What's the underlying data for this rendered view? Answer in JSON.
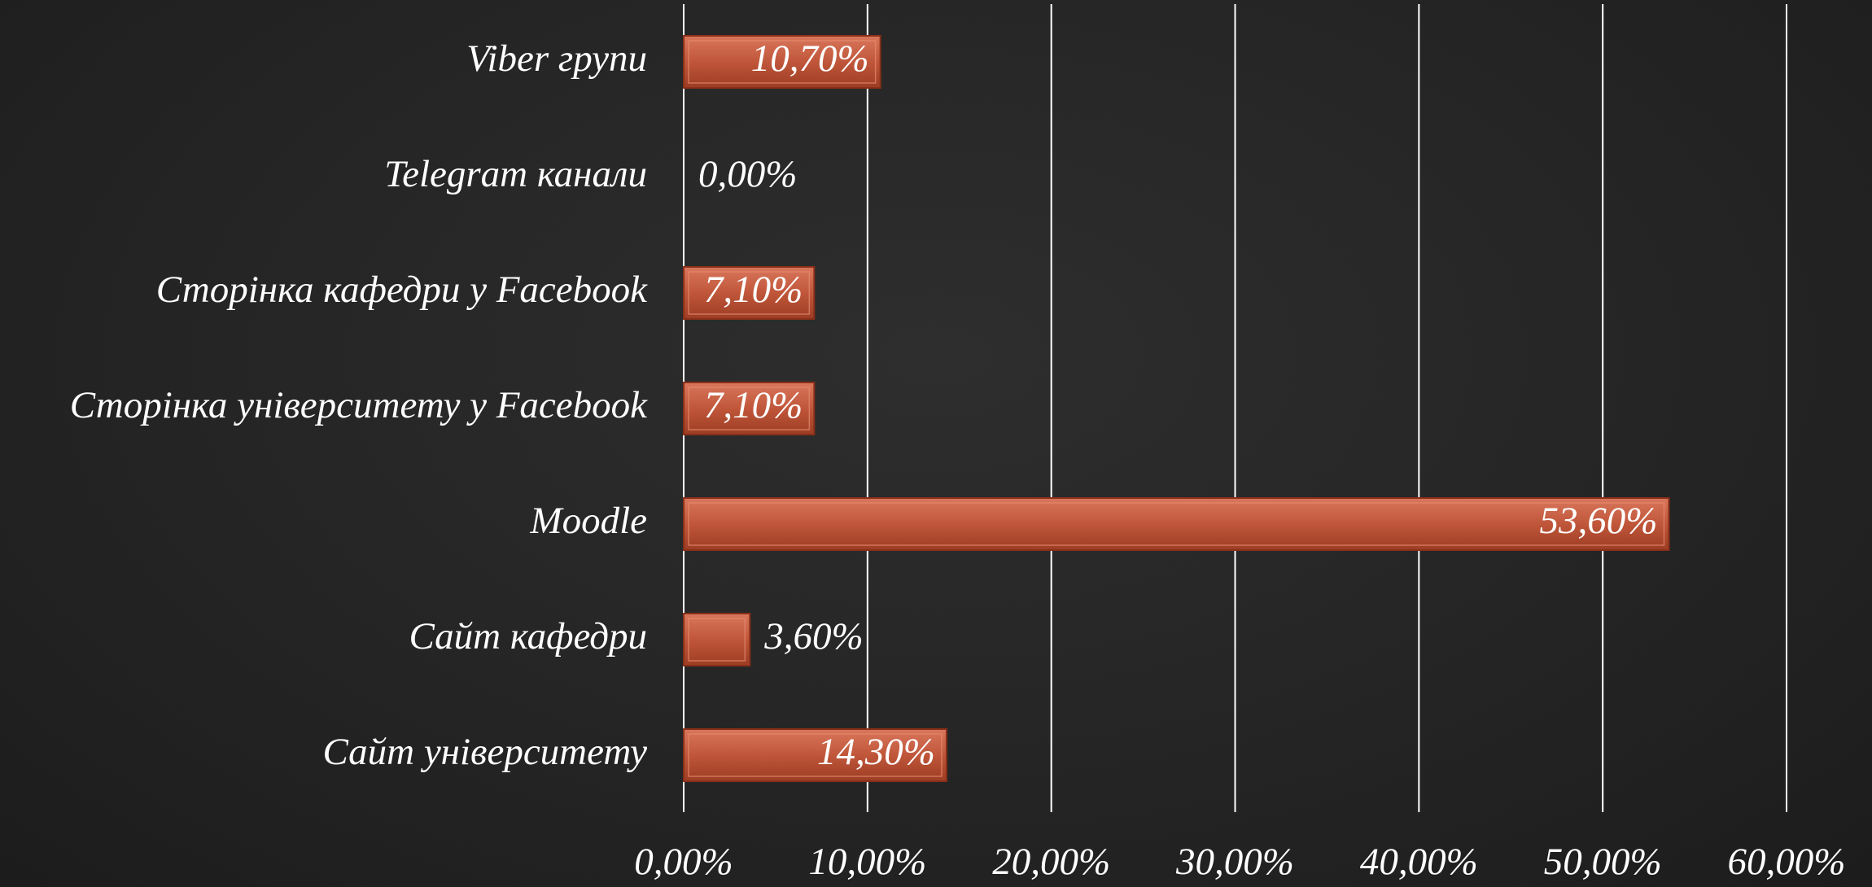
{
  "chart_data": {
    "type": "bar",
    "orientation": "horizontal",
    "categories": [
      "Viber групи",
      "Telegram канали",
      "Сторінка кафедри у Facebook",
      "Сторінка університету у Facebook",
      "Moodle",
      "Сайт кафедри",
      "Сайт університету"
    ],
    "values": [
      10.7,
      0,
      7.1,
      7.1,
      53.6,
      3.6,
      14.3
    ],
    "value_labels": [
      "10,70%",
      "0,00%",
      "7,10%",
      "7,10%",
      "53,60%",
      "3,60%",
      "14,30%"
    ],
    "color": "#c0563a",
    "xlim": [
      0,
      60
    ],
    "xticks": [
      {
        "value": 0,
        "label": "0,00%"
      },
      {
        "value": 10,
        "label": "10,00%"
      },
      {
        "value": 20,
        "label": "20,00%"
      },
      {
        "value": 30,
        "label": "30,00%"
      },
      {
        "value": 40,
        "label": "40,00%"
      },
      {
        "value": 50,
        "label": "50,00%"
      },
      {
        "value": 60,
        "label": "60,00%"
      }
    ],
    "grid": true
  }
}
